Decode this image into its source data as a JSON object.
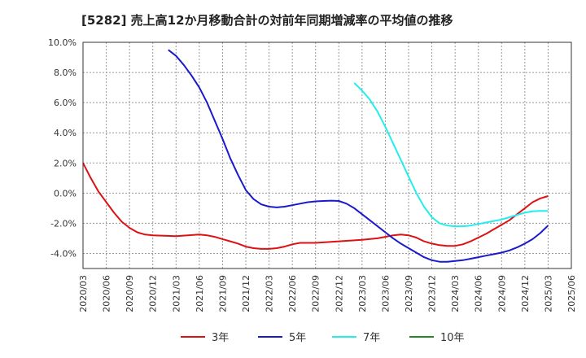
{
  "chart_data": {
    "type": "line",
    "title": "[5282]  売上高12か月移動合計の対前年同期増減率の平均値の推移",
    "xlabel": "",
    "ylabel": "",
    "ylim": [
      -5,
      10
    ],
    "yticks": [
      10,
      8,
      6,
      4,
      2,
      0,
      -2,
      -4
    ],
    "ytick_labels": [
      "10.0%",
      "8.0%",
      "6.0%",
      "4.0%",
      "2.0%",
      "0.0%",
      "-2.0%",
      "-4.0%"
    ],
    "x_range": [
      "2020/03",
      "2025/06"
    ],
    "xtick_labels": [
      "2020/03",
      "2020/06",
      "2020/09",
      "2020/12",
      "2021/03",
      "2021/06",
      "2021/09",
      "2021/12",
      "2022/03",
      "2022/06",
      "2022/09",
      "2022/12",
      "2023/03",
      "2023/06",
      "2023/09",
      "2023/12",
      "2024/03",
      "2024/06",
      "2024/09",
      "2024/12",
      "2025/03",
      "2025/06"
    ],
    "grid": true,
    "legend_position": "bottom",
    "series": [
      {
        "name": "3年",
        "color": "#dd1111",
        "points": [
          [
            "2020/03",
            2.0
          ],
          [
            "2020/04",
            1.0
          ],
          [
            "2020/05",
            0.1
          ],
          [
            "2020/06",
            -0.6
          ],
          [
            "2020/07",
            -1.3
          ],
          [
            "2020/08",
            -1.9
          ],
          [
            "2020/09",
            -2.3
          ],
          [
            "2020/10",
            -2.6
          ],
          [
            "2020/11",
            -2.75
          ],
          [
            "2020/12",
            -2.8
          ],
          [
            "2021/03",
            -2.85
          ],
          [
            "2021/06",
            -2.75
          ],
          [
            "2021/07",
            -2.8
          ],
          [
            "2021/08",
            -2.9
          ],
          [
            "2021/09",
            -3.05
          ],
          [
            "2021/10",
            -3.2
          ],
          [
            "2021/11",
            -3.35
          ],
          [
            "2021/12",
            -3.55
          ],
          [
            "2022/01",
            -3.65
          ],
          [
            "2022/02",
            -3.7
          ],
          [
            "2022/03",
            -3.7
          ],
          [
            "2022/04",
            -3.65
          ],
          [
            "2022/05",
            -3.55
          ],
          [
            "2022/06",
            -3.4
          ],
          [
            "2022/07",
            -3.3
          ],
          [
            "2022/09",
            -3.3
          ],
          [
            "2022/12",
            -3.2
          ],
          [
            "2023/03",
            -3.1
          ],
          [
            "2023/05",
            -3.0
          ],
          [
            "2023/06",
            -2.9
          ],
          [
            "2023/07",
            -2.8
          ],
          [
            "2023/08",
            -2.75
          ],
          [
            "2023/09",
            -2.8
          ],
          [
            "2023/10",
            -2.95
          ],
          [
            "2023/11",
            -3.2
          ],
          [
            "2023/12",
            -3.35
          ],
          [
            "2024/01",
            -3.45
          ],
          [
            "2024/02",
            -3.5
          ],
          [
            "2024/03",
            -3.5
          ],
          [
            "2024/04",
            -3.4
          ],
          [
            "2024/05",
            -3.2
          ],
          [
            "2024/06",
            -2.95
          ],
          [
            "2024/07",
            -2.7
          ],
          [
            "2024/08",
            -2.4
          ],
          [
            "2024/09",
            -2.1
          ],
          [
            "2024/10",
            -1.8
          ],
          [
            "2024/11",
            -1.4
          ],
          [
            "2024/12",
            -1.0
          ],
          [
            "2025/01",
            -0.6
          ],
          [
            "2025/02",
            -0.35
          ],
          [
            "2025/03",
            -0.2
          ]
        ]
      },
      {
        "name": "5年",
        "color": "#1a1acc",
        "points": [
          [
            "2021/02",
            9.5
          ],
          [
            "2021/03",
            9.1
          ],
          [
            "2021/04",
            8.5
          ],
          [
            "2021/05",
            7.8
          ],
          [
            "2021/06",
            7.0
          ],
          [
            "2021/07",
            6.0
          ],
          [
            "2021/08",
            4.8
          ],
          [
            "2021/09",
            3.6
          ],
          [
            "2021/10",
            2.3
          ],
          [
            "2021/11",
            1.2
          ],
          [
            "2021/12",
            0.2
          ],
          [
            "2022/01",
            -0.4
          ],
          [
            "2022/02",
            -0.75
          ],
          [
            "2022/03",
            -0.9
          ],
          [
            "2022/04",
            -0.95
          ],
          [
            "2022/05",
            -0.9
          ],
          [
            "2022/06",
            -0.8
          ],
          [
            "2022/07",
            -0.7
          ],
          [
            "2022/08",
            -0.6
          ],
          [
            "2022/09",
            -0.55
          ],
          [
            "2022/10",
            -0.52
          ],
          [
            "2022/11",
            -0.5
          ],
          [
            "2022/12",
            -0.52
          ],
          [
            "2023/01",
            -0.7
          ],
          [
            "2023/02",
            -1.0
          ],
          [
            "2023/03",
            -1.4
          ],
          [
            "2023/04",
            -1.8
          ],
          [
            "2023/05",
            -2.2
          ],
          [
            "2023/06",
            -2.6
          ],
          [
            "2023/07",
            -3.0
          ],
          [
            "2023/08",
            -3.35
          ],
          [
            "2023/09",
            -3.65
          ],
          [
            "2023/10",
            -3.95
          ],
          [
            "2023/11",
            -4.25
          ],
          [
            "2023/12",
            -4.45
          ],
          [
            "2024/01",
            -4.55
          ],
          [
            "2024/02",
            -4.55
          ],
          [
            "2024/03",
            -4.5
          ],
          [
            "2024/04",
            -4.45
          ],
          [
            "2024/05",
            -4.35
          ],
          [
            "2024/06",
            -4.25
          ],
          [
            "2024/07",
            -4.15
          ],
          [
            "2024/08",
            -4.05
          ],
          [
            "2024/09",
            -3.95
          ],
          [
            "2024/10",
            -3.8
          ],
          [
            "2024/11",
            -3.6
          ],
          [
            "2024/12",
            -3.35
          ],
          [
            "2025/01",
            -3.05
          ],
          [
            "2025/02",
            -2.65
          ],
          [
            "2025/03",
            -2.15
          ]
        ]
      },
      {
        "name": "7年",
        "color": "#22eeee",
        "points": [
          [
            "2023/02",
            7.3
          ],
          [
            "2023/03",
            6.8
          ],
          [
            "2023/04",
            6.2
          ],
          [
            "2023/05",
            5.4
          ],
          [
            "2023/06",
            4.4
          ],
          [
            "2023/07",
            3.3
          ],
          [
            "2023/08",
            2.2
          ],
          [
            "2023/09",
            1.1
          ],
          [
            "2023/10",
            0.0
          ],
          [
            "2023/11",
            -0.9
          ],
          [
            "2023/12",
            -1.6
          ],
          [
            "2024/01",
            -2.0
          ],
          [
            "2024/02",
            -2.15
          ],
          [
            "2024/03",
            -2.2
          ],
          [
            "2024/04",
            -2.2
          ],
          [
            "2024/05",
            -2.15
          ],
          [
            "2024/06",
            -2.05
          ],
          [
            "2024/07",
            -1.95
          ],
          [
            "2024/08",
            -1.85
          ],
          [
            "2024/09",
            -1.75
          ],
          [
            "2024/10",
            -1.6
          ],
          [
            "2024/11",
            -1.45
          ],
          [
            "2024/12",
            -1.3
          ],
          [
            "2025/01",
            -1.2
          ],
          [
            "2025/02",
            -1.18
          ],
          [
            "2025/03",
            -1.18
          ]
        ]
      },
      {
        "name": "10年",
        "color": "#228822",
        "points": []
      }
    ]
  }
}
